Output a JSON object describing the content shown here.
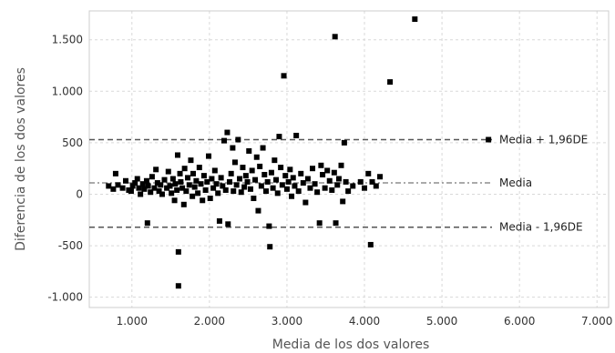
{
  "chart_data": {
    "type": "scatter",
    "title": "",
    "xlabel": "Media de los dos valores",
    "ylabel": "Diferencia de los dos valores",
    "xlim": [
      450,
      7150
    ],
    "ylim": [
      -1100,
      1780
    ],
    "x_ticks": [
      1000,
      2000,
      3000,
      4000,
      5000,
      6000,
      7000
    ],
    "x_tick_labels": [
      "1.000",
      "2.000",
      "3.000",
      "4.000",
      "5.000",
      "6.000",
      "7.000"
    ],
    "y_ticks": [
      -1000,
      -500,
      0,
      500,
      1000,
      1500
    ],
    "y_tick_labels": [
      "-1.000",
      "-500",
      "0",
      "500",
      "1.000",
      "1.500"
    ],
    "grid": true,
    "reference_lines": [
      {
        "label": "Media + 1,96DE",
        "y": 530,
        "style": "dashed"
      },
      {
        "label": "Media",
        "y": 110,
        "style": "dash-dot"
      },
      {
        "label": "Media - 1,96DE",
        "y": -320,
        "style": "dashed"
      }
    ],
    "points": [
      [
        700,
        80
      ],
      [
        760,
        50
      ],
      [
        790,
        200
      ],
      [
        820,
        90
      ],
      [
        880,
        60
      ],
      [
        920,
        130
      ],
      [
        960,
        40
      ],
      [
        990,
        30
      ],
      [
        1010,
        80
      ],
      [
        1040,
        110
      ],
      [
        1070,
        150
      ],
      [
        1090,
        60
      ],
      [
        1110,
        0
      ],
      [
        1140,
        100
      ],
      [
        1160,
        50
      ],
      [
        1190,
        130
      ],
      [
        1200,
        -280
      ],
      [
        1210,
        80
      ],
      [
        1240,
        20
      ],
      [
        1260,
        170
      ],
      [
        1290,
        60
      ],
      [
        1310,
        240
      ],
      [
        1330,
        110
      ],
      [
        1350,
        30
      ],
      [
        1370,
        90
      ],
      [
        1390,
        0
      ],
      [
        1420,
        140
      ],
      [
        1450,
        60
      ],
      [
        1470,
        220
      ],
      [
        1490,
        80
      ],
      [
        1510,
        10
      ],
      [
        1530,
        150
      ],
      [
        1550,
        -60
      ],
      [
        1560,
        100
      ],
      [
        1580,
        40
      ],
      [
        1590,
        380
      ],
      [
        1600,
        -560
      ],
      [
        1600,
        -890
      ],
      [
        1620,
        200
      ],
      [
        1630,
        120
      ],
      [
        1650,
        60
      ],
      [
        1670,
        -100
      ],
      [
        1680,
        250
      ],
      [
        1700,
        30
      ],
      [
        1720,
        160
      ],
      [
        1740,
        90
      ],
      [
        1760,
        330
      ],
      [
        1780,
        -20
      ],
      [
        1790,
        200
      ],
      [
        1810,
        70
      ],
      [
        1830,
        130
      ],
      [
        1850,
        10
      ],
      [
        1870,
        260
      ],
      [
        1890,
        100
      ],
      [
        1910,
        -60
      ],
      [
        1930,
        180
      ],
      [
        1950,
        40
      ],
      [
        1970,
        120
      ],
      [
        1990,
        370
      ],
      [
        2010,
        -40
      ],
      [
        2030,
        150
      ],
      [
        2050,
        60
      ],
      [
        2070,
        230
      ],
      [
        2090,
        100
      ],
      [
        2110,
        10
      ],
      [
        2130,
        -260
      ],
      [
        2150,
        160
      ],
      [
        2170,
        80
      ],
      [
        2190,
        520
      ],
      [
        2210,
        40
      ],
      [
        2230,
        600
      ],
      [
        2240,
        -290
      ],
      [
        2260,
        120
      ],
      [
        2280,
        200
      ],
      [
        2300,
        450
      ],
      [
        2310,
        30
      ],
      [
        2330,
        310
      ],
      [
        2350,
        90
      ],
      [
        2370,
        530
      ],
      [
        2390,
        150
      ],
      [
        2410,
        20
      ],
      [
        2430,
        260
      ],
      [
        2450,
        70
      ],
      [
        2470,
        180
      ],
      [
        2490,
        120
      ],
      [
        2510,
        420
      ],
      [
        2530,
        50
      ],
      [
        2550,
        230
      ],
      [
        2570,
        -40
      ],
      [
        2590,
        140
      ],
      [
        2610,
        360
      ],
      [
        2630,
        -160
      ],
      [
        2650,
        270
      ],
      [
        2670,
        80
      ],
      [
        2690,
        450
      ],
      [
        2710,
        190
      ],
      [
        2730,
        30
      ],
      [
        2750,
        120
      ],
      [
        2770,
        -310
      ],
      [
        2780,
        -510
      ],
      [
        2800,
        210
      ],
      [
        2820,
        60
      ],
      [
        2840,
        330
      ],
      [
        2860,
        140
      ],
      [
        2880,
        10
      ],
      [
        2900,
        560
      ],
      [
        2920,
        260
      ],
      [
        2940,
        90
      ],
      [
        2960,
        1150
      ],
      [
        2980,
        180
      ],
      [
        3000,
        50
      ],
      [
        3020,
        120
      ],
      [
        3040,
        240
      ],
      [
        3060,
        -20
      ],
      [
        3080,
        160
      ],
      [
        3100,
        80
      ],
      [
        3120,
        570
      ],
      [
        3150,
        30
      ],
      [
        3180,
        200
      ],
      [
        3210,
        110
      ],
      [
        3240,
        -80
      ],
      [
        3270,
        150
      ],
      [
        3300,
        60
      ],
      [
        3330,
        250
      ],
      [
        3360,
        100
      ],
      [
        3390,
        20
      ],
      [
        3420,
        -280
      ],
      [
        3440,
        280
      ],
      [
        3460,
        190
      ],
      [
        3490,
        60
      ],
      [
        3520,
        230
      ],
      [
        3550,
        130
      ],
      [
        3580,
        40
      ],
      [
        3610,
        210
      ],
      [
        3620,
        1530
      ],
      [
        3630,
        -280
      ],
      [
        3650,
        90
      ],
      [
        3670,
        150
      ],
      [
        3700,
        280
      ],
      [
        3720,
        -70
      ],
      [
        3740,
        500
      ],
      [
        3760,
        120
      ],
      [
        3790,
        30
      ],
      [
        3850,
        80
      ],
      [
        3950,
        120
      ],
      [
        4000,
        60
      ],
      [
        4050,
        200
      ],
      [
        4080,
        -490
      ],
      [
        4100,
        120
      ],
      [
        4150,
        80
      ],
      [
        4200,
        170
      ],
      [
        4330,
        1090
      ],
      [
        4650,
        1700
      ],
      [
        5600,
        530
      ]
    ]
  }
}
